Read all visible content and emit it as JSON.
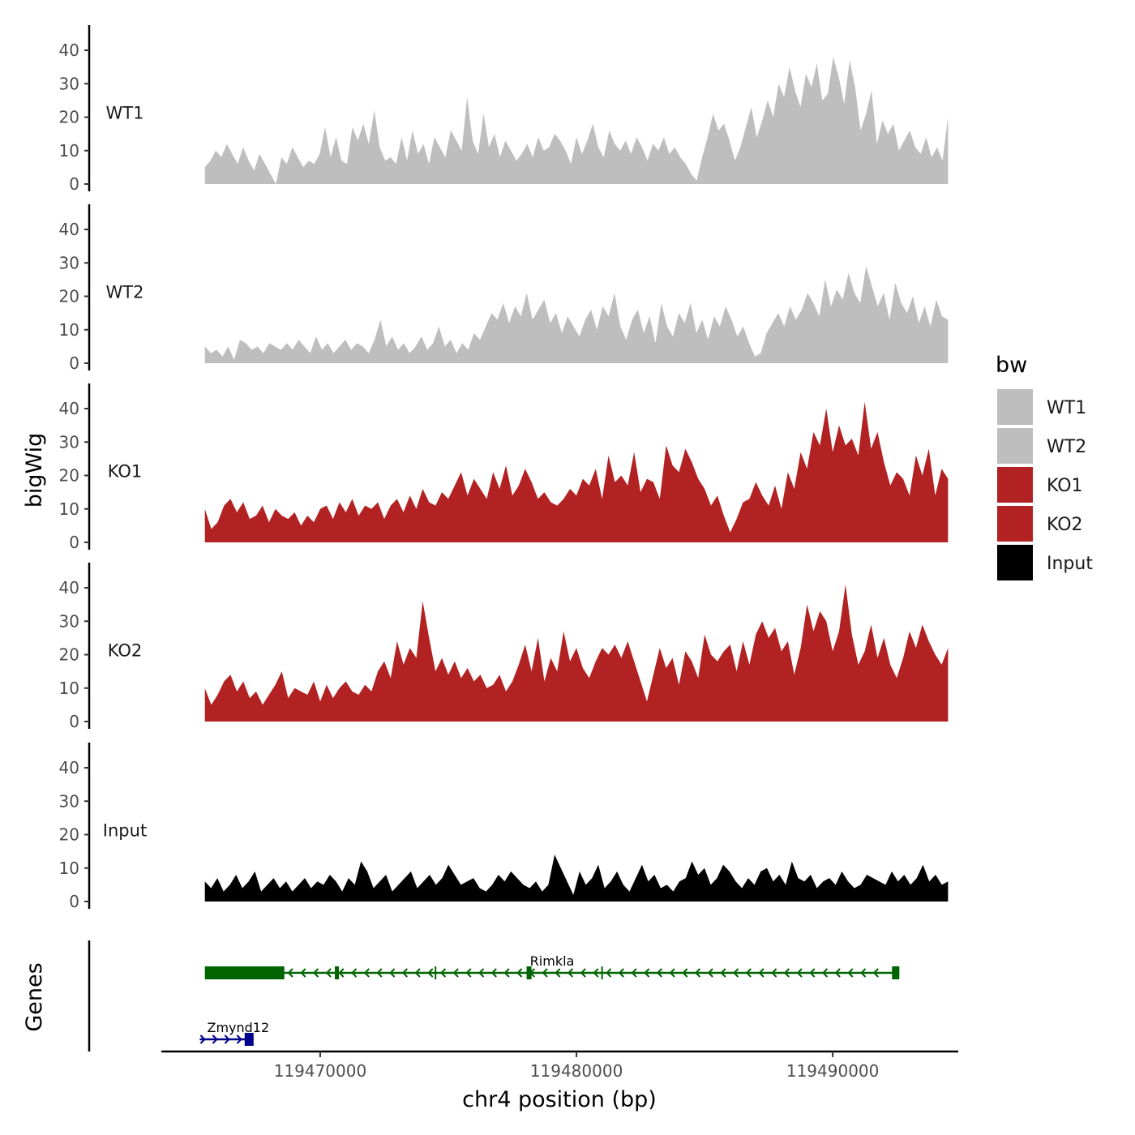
{
  "chart_data": {
    "type": "area",
    "title": "",
    "xlabel": "chr4 position (bp)",
    "ylabel": "bigWig",
    "genes_label": "Genes",
    "xlim": [
      119463800,
      119494900
    ],
    "xticks": [
      119470000,
      119480000,
      119490000
    ],
    "xtick_labels": [
      "119470000",
      "119480000",
      "119490000"
    ],
    "ylim": [
      0,
      47
    ],
    "yticks": [
      0,
      10,
      20,
      30,
      40
    ],
    "ytick_labels": [
      "0",
      "10",
      "20",
      "30",
      "40"
    ],
    "x_start": 119465500,
    "x_end": 119494500,
    "legend": {
      "title": "bw",
      "entries": [
        {
          "name": "WT1",
          "color": "#bebebe"
        },
        {
          "name": "WT2",
          "color": "#bebebe"
        },
        {
          "name": "KO1",
          "color": "#b22222"
        },
        {
          "name": "KO2",
          "color": "#b22222"
        },
        {
          "name": "Input",
          "color": "#000000"
        }
      ]
    },
    "series": [
      {
        "name": "WT1",
        "color": "#bebebe",
        "values": [
          5,
          7,
          10,
          8,
          12,
          9,
          6,
          11,
          7,
          4,
          9,
          6,
          3,
          0,
          8,
          6,
          11,
          8,
          5,
          7,
          6,
          9,
          17,
          8,
          14,
          7,
          6,
          17,
          13,
          18,
          12,
          22,
          11,
          7,
          8,
          6,
          14,
          7,
          16,
          9,
          12,
          6,
          14,
          11,
          8,
          16,
          13,
          10,
          26,
          13,
          9,
          21,
          11,
          15,
          8,
          13,
          10,
          7,
          9,
          12,
          8,
          14,
          10,
          11,
          15,
          13,
          10,
          6,
          14,
          9,
          13,
          18,
          11,
          8,
          16,
          12,
          10,
          13,
          9,
          14,
          11,
          7,
          12,
          10,
          14,
          9,
          11,
          8,
          6,
          3,
          1,
          8,
          14,
          21,
          16,
          18,
          13,
          7,
          11,
          17,
          23,
          14,
          19,
          25,
          20,
          30,
          26,
          35,
          28,
          23,
          33,
          29,
          36,
          25,
          27,
          38,
          32,
          24,
          37,
          29,
          16,
          21,
          28,
          12,
          19,
          15,
          18,
          10,
          13,
          16,
          11,
          9,
          14,
          8,
          11,
          7,
          20
        ]
      },
      {
        "name": "WT2",
        "color": "#bebebe",
        "values": [
          5,
          3,
          4,
          2,
          5,
          1,
          7,
          6,
          4,
          5,
          3,
          6,
          5,
          4,
          6,
          4,
          7,
          5,
          3,
          8,
          4,
          6,
          3,
          5,
          7,
          4,
          6,
          5,
          3,
          7,
          13,
          5,
          8,
          4,
          6,
          3,
          5,
          8,
          4,
          6,
          11,
          5,
          7,
          3,
          6,
          4,
          9,
          7,
          11,
          15,
          13,
          18,
          12,
          17,
          14,
          21,
          13,
          16,
          19,
          12,
          15,
          9,
          14,
          11,
          8,
          13,
          16,
          10,
          17,
          14,
          21,
          11,
          7,
          13,
          16,
          9,
          14,
          6,
          18,
          11,
          8,
          15,
          12,
          18,
          9,
          13,
          7,
          14,
          11,
          17,
          13,
          8,
          11,
          6,
          2,
          3,
          9,
          12,
          15,
          11,
          17,
          13,
          16,
          21,
          18,
          14,
          25,
          17,
          22,
          19,
          27,
          21,
          18,
          29,
          23,
          17,
          21,
          13,
          24,
          18,
          15,
          20,
          12,
          17,
          11,
          19,
          14,
          13
        ]
      },
      {
        "name": "KO1",
        "color": "#b22222",
        "values": [
          10,
          4,
          6,
          11,
          13,
          9,
          12,
          7,
          8,
          11,
          6,
          10,
          8,
          7,
          9,
          5,
          8,
          6,
          10,
          11,
          7,
          12,
          9,
          13,
          8,
          11,
          10,
          12,
          7,
          11,
          13,
          9,
          14,
          10,
          16,
          12,
          11,
          15,
          13,
          17,
          21,
          14,
          19,
          16,
          13,
          21,
          16,
          23,
          14,
          17,
          22,
          18,
          13,
          15,
          12,
          11,
          13,
          16,
          14,
          19,
          17,
          22,
          13,
          26,
          18,
          20,
          17,
          27,
          15,
          19,
          18,
          13,
          29,
          23,
          21,
          28,
          24,
          19,
          16,
          11,
          14,
          8,
          3,
          7,
          12,
          13,
          18,
          14,
          11,
          17,
          10,
          21,
          16,
          27,
          22,
          33,
          29,
          40,
          27,
          35,
          29,
          31,
          26,
          42,
          28,
          33,
          24,
          17,
          21,
          19,
          14,
          26,
          20,
          28,
          14,
          22,
          19
        ]
      },
      {
        "name": "KO2",
        "color": "#b22222",
        "values": [
          10,
          5,
          8,
          12,
          14,
          9,
          12,
          7,
          9,
          5,
          8,
          11,
          15,
          7,
          10,
          9,
          8,
          12,
          6,
          11,
          7,
          10,
          12,
          9,
          8,
          11,
          9,
          15,
          18,
          13,
          24,
          17,
          22,
          19,
          36,
          25,
          15,
          19,
          14,
          18,
          13,
          16,
          12,
          14,
          10,
          11,
          14,
          9,
          12,
          17,
          23,
          15,
          25,
          12,
          19,
          15,
          27,
          18,
          22,
          16,
          13,
          18,
          22,
          20,
          23,
          19,
          24,
          18,
          12,
          6,
          14,
          22,
          16,
          19,
          11,
          21,
          18,
          13,
          26,
          20,
          18,
          21,
          23,
          15,
          24,
          17,
          26,
          30,
          25,
          28,
          21,
          24,
          14,
          22,
          35,
          27,
          33,
          30,
          21,
          27,
          41,
          26,
          17,
          21,
          29,
          19,
          25,
          17,
          13,
          19,
          27,
          22,
          29,
          24,
          20,
          17,
          22
        ]
      },
      {
        "name": "Input",
        "color": "#000000",
        "values": [
          6,
          4,
          7,
          3,
          5,
          8,
          4,
          6,
          9,
          3,
          5,
          7,
          4,
          6,
          3,
          5,
          7,
          4,
          6,
          5,
          8,
          6,
          3,
          7,
          5,
          12,
          9,
          4,
          6,
          8,
          3,
          5,
          7,
          9,
          4,
          6,
          8,
          5,
          7,
          11,
          8,
          5,
          6,
          7,
          4,
          3,
          5,
          8,
          6,
          9,
          7,
          5,
          4,
          6,
          3,
          5,
          14,
          10,
          6,
          2,
          9,
          5,
          7,
          11,
          4,
          6,
          9,
          5,
          3,
          7,
          11,
          6,
          8,
          4,
          5,
          3,
          6,
          7,
          12,
          8,
          10,
          5,
          7,
          11,
          9,
          6,
          4,
          7,
          5,
          9,
          10,
          6,
          8,
          5,
          12,
          7,
          6,
          8,
          4,
          6,
          7,
          5,
          9,
          6,
          4,
          5,
          8,
          7,
          6,
          5,
          9,
          6,
          8,
          5,
          7,
          11,
          6,
          8,
          5,
          6
        ]
      }
    ],
    "genes": [
      {
        "name": "Rimkla",
        "strand": "-",
        "start": 119465500,
        "end": 119492600,
        "color": "#006400"
      },
      {
        "name": "Zmynd12",
        "strand": "+",
        "start": 119465300,
        "end": 119467400,
        "color": "#00008b"
      }
    ]
  }
}
